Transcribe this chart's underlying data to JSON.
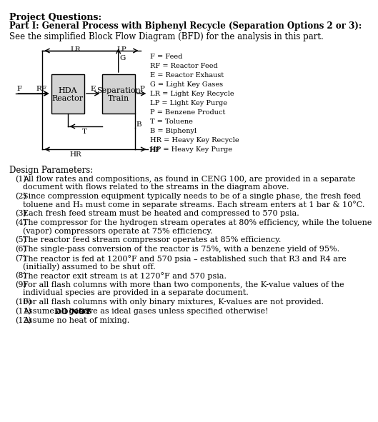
{
  "title_bold": "Project Questions:",
  "part_title": "Part I: General Process with Biphenyl Recycle (Separation Options 2 or 3):",
  "subtitle": "See the simplified Block Flow Diagram (BFD) for the analysis in this part.",
  "legend_items": [
    "F = Feed",
    "RF = Reactor Feed",
    "E = Reactor Exhaust",
    "G = Light Key Gases",
    "LR = Light Key Recycle",
    "LP = Light Key Purge",
    "P = Benzene Product",
    "T = Toluene",
    "B = Biphenyl",
    "HR = Heavy Key Recycle",
    "HP = Heavy Key Purge"
  ],
  "design_params_title": "Design Parameters:",
  "design_params": [
    "All flow rates and compositions, as found in CENG 100, are provided in a separate\n        document with flows related to the streams in the diagram above.",
    "Since compression equipment typically needs to be of a single phase, the fresh feed\n        toluene and H₂ must come in separate streams. Each stream enters at 1 bar & 10°C.",
    "Each fresh feed stream must be heated and compressed to 570 psia.",
    "The compressor for the hydrogen stream operates at 80% efficiency, while the toluene\n        (vapor) compressors operate at 75% efficiency.",
    "The reactor feed stream compressor operates at 85% efficiency.",
    "The single-pass conversion of the reactor is 75%, with a benzene yield of 95%.",
    "The reactor is fed at 1200°F and 570 psia – established such that R3 and R4 are\n        (initially) assumed to be shut off.",
    "The reactor exit stream is at 1270°F and 570 psia.",
    "For all flash columns with more than two components, the K-value values of the\n        individual species are provided in a separate document.",
    "For all flash columns with only binary mixtures, K-values are not provided.",
    "Assume all gases DO NOT behave as ideal gases unless specified otherwise!",
    "Assume no heat of mixing."
  ],
  "background_color": "#ffffff",
  "text_color": "#000000",
  "box_fill": "#d3d3d3",
  "box_edge": "#000000"
}
